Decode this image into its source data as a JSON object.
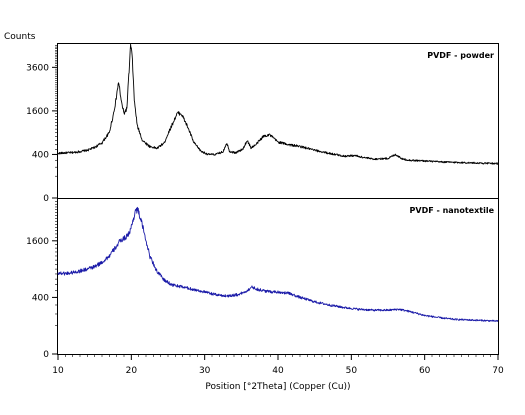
{
  "chart_data": {
    "type": "line",
    "ylabel": "Counts",
    "xlabel": "Position [°2Theta] (Copper (Cu))",
    "xlim": [
      10,
      70
    ],
    "x_ticks": [
      10,
      20,
      30,
      40,
      50,
      60,
      70
    ],
    "x_minor_step": 1,
    "y_scale": "sqrt",
    "grid": false,
    "panels": [
      {
        "name": "PVDF - powder",
        "color": "#000000",
        "ylim": [
          0,
          5000
        ],
        "y_ticks": [
          400,
          1600,
          3600
        ],
        "points": [
          [
            10,
            420
          ],
          [
            11,
            430
          ],
          [
            12,
            435
          ],
          [
            13,
            455
          ],
          [
            14,
            480
          ],
          [
            15,
            540
          ],
          [
            16,
            640
          ],
          [
            17,
            900
          ],
          [
            17.5,
            1400
          ],
          [
            17.9,
            2000
          ],
          [
            18.1,
            2500
          ],
          [
            18.3,
            2800
          ],
          [
            18.6,
            2000
          ],
          [
            19.0,
            1500
          ],
          [
            19.4,
            1700
          ],
          [
            19.7,
            3400
          ],
          [
            19.9,
            4900
          ],
          [
            20.1,
            4300
          ],
          [
            20.4,
            2000
          ],
          [
            20.8,
            1100
          ],
          [
            21.5,
            700
          ],
          [
            22.5,
            560
          ],
          [
            23.5,
            520
          ],
          [
            24.5,
            640
          ],
          [
            25.5,
            1100
          ],
          [
            26.3,
            1520
          ],
          [
            26.8,
            1500
          ],
          [
            27.5,
            1150
          ],
          [
            28.5,
            650
          ],
          [
            29.5,
            460
          ],
          [
            30.5,
            400
          ],
          [
            31.5,
            400
          ],
          [
            32.5,
            450
          ],
          [
            33.0,
            640
          ],
          [
            33.4,
            460
          ],
          [
            34.2,
            430
          ],
          [
            35.2,
            500
          ],
          [
            35.8,
            700
          ],
          [
            36.3,
            530
          ],
          [
            37.0,
            600
          ],
          [
            38.0,
            800
          ],
          [
            38.8,
            850
          ],
          [
            40.0,
            660
          ],
          [
            41.5,
            600
          ],
          [
            43,
            560
          ],
          [
            45,
            480
          ],
          [
            47,
            420
          ],
          [
            49,
            370
          ],
          [
            50.5,
            380
          ],
          [
            51.5,
            350
          ],
          [
            53,
            320
          ],
          [
            55,
            330
          ],
          [
            56,
            400
          ],
          [
            57,
            320
          ],
          [
            58,
            300
          ],
          [
            60,
            290
          ],
          [
            62,
            275
          ],
          [
            65,
            265
          ],
          [
            68,
            255
          ],
          [
            70,
            250
          ]
        ]
      },
      {
        "name": "PVDF - nanotextile",
        "color": "#1a1aa8",
        "ylim": [
          0,
          3000
        ],
        "y_ticks": [
          400,
          1600
        ],
        "points": [
          [
            10,
            820
          ],
          [
            11,
            810
          ],
          [
            12,
            830
          ],
          [
            13,
            860
          ],
          [
            14,
            900
          ],
          [
            15,
            950
          ],
          [
            16,
            1050
          ],
          [
            17,
            1200
          ],
          [
            17.8,
            1400
          ],
          [
            18.5,
            1600
          ],
          [
            19.2,
            1700
          ],
          [
            19.8,
            1850
          ],
          [
            20.2,
            2200
          ],
          [
            20.6,
            2600
          ],
          [
            20.9,
            2580
          ],
          [
            21.3,
            2250
          ],
          [
            21.9,
            1700
          ],
          [
            22.5,
            1200
          ],
          [
            23.5,
            850
          ],
          [
            24.5,
            680
          ],
          [
            25.5,
            600
          ],
          [
            27,
            560
          ],
          [
            28.5,
            520
          ],
          [
            30,
            480
          ],
          [
            31.5,
            440
          ],
          [
            33,
            420
          ],
          [
            34.5,
            440
          ],
          [
            35.5,
            480
          ],
          [
            36.5,
            560
          ],
          [
            37.3,
            520
          ],
          [
            38.5,
            490
          ],
          [
            40,
            480
          ],
          [
            41.5,
            460
          ],
          [
            43,
            400
          ],
          [
            45,
            340
          ],
          [
            47,
            300
          ],
          [
            49,
            270
          ],
          [
            51,
            250
          ],
          [
            53,
            240
          ],
          [
            55,
            240
          ],
          [
            56.5,
            250
          ],
          [
            58,
            225
          ],
          [
            60,
            185
          ],
          [
            62,
            165
          ],
          [
            64,
            150
          ],
          [
            66,
            145
          ],
          [
            68,
            140
          ],
          [
            70,
            135
          ]
        ]
      }
    ]
  }
}
